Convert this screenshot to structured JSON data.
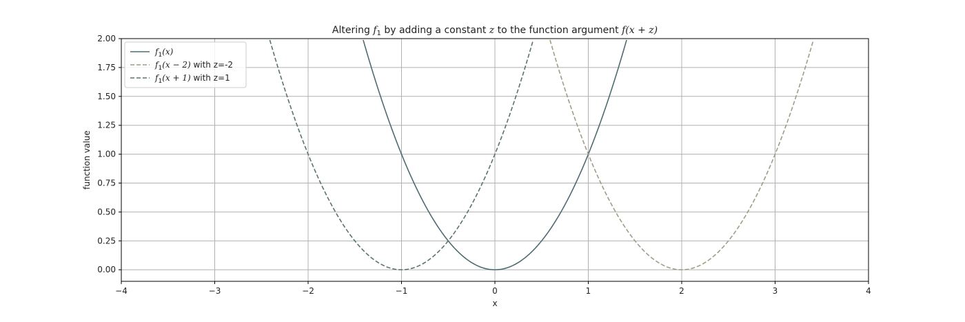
{
  "chart_data": {
    "type": "line",
    "title": {
      "prefix": "Altering ",
      "f": "f",
      "sub": "1",
      "middle": " by adding a constant ",
      "z": "z",
      "to": " to the function argument ",
      "expr": "f(x + z)"
    },
    "xlabel": "x",
    "ylabel": "function value",
    "xlim": [
      -4,
      4
    ],
    "ylim": [
      -0.1,
      2.0
    ],
    "x_ticks": [
      -4,
      -3,
      -2,
      -1,
      0,
      1,
      2,
      3,
      4
    ],
    "x_tick_labels": [
      "−4",
      "−3",
      "−2",
      "−1",
      "0",
      "1",
      "2",
      "3",
      "4"
    ],
    "y_ticks": [
      0.0,
      0.25,
      0.5,
      0.75,
      1.0,
      1.25,
      1.5,
      1.75,
      2.0
    ],
    "y_tick_labels": [
      "0.00",
      "0.25",
      "0.50",
      "0.75",
      "1.00",
      "1.25",
      "1.50",
      "1.75",
      "2.00"
    ],
    "grid": true,
    "legend_position": "top-left",
    "series": [
      {
        "name": "f1(x)",
        "shift": 0,
        "style": "solid",
        "color": "#4f6b72",
        "legend": {
          "f": "f",
          "sub": "1",
          "arg": "(x)",
          "suffix": ""
        }
      },
      {
        "name": "f1(x − 2) with z=-2",
        "shift": -2,
        "style": "dashed",
        "color": "#a09c85",
        "legend": {
          "f": "f",
          "sub": "1",
          "arg": "(x − 2)",
          "suffix": " with z=-2"
        }
      },
      {
        "name": "f1(x + 1) with z=1",
        "shift": 1,
        "style": "dashed",
        "color": "#5a736f",
        "legend": {
          "f": "f",
          "sub": "1",
          "arg": "(x + 1)",
          "suffix": " with z=1"
        }
      }
    ],
    "function": "f1(x) = x^2"
  }
}
